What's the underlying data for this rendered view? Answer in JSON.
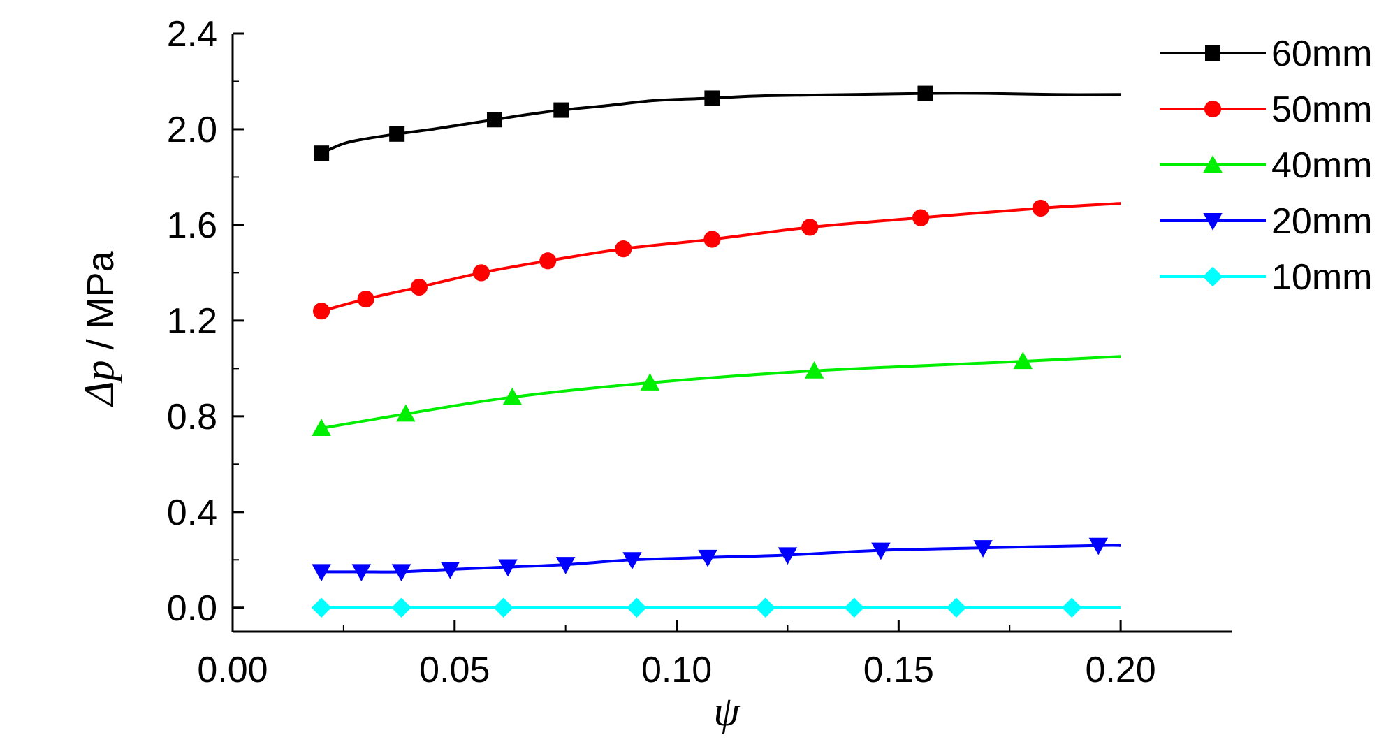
{
  "chart_data": {
    "type": "line",
    "xlabel": "ψ",
    "ylabel_symbol": "Δp",
    "ylabel_unit": " / MPa",
    "xlim": [
      0.0,
      0.225
    ],
    "ylim": [
      -0.1,
      2.4
    ],
    "xticks": [
      0.0,
      0.05,
      0.1,
      0.15,
      0.2
    ],
    "xtick_labels": [
      "0.00",
      "0.05",
      "0.10",
      "0.15",
      "0.20"
    ],
    "yticks": [
      0.0,
      0.4,
      0.8,
      1.2,
      1.6,
      2.0,
      2.4
    ],
    "ytick_labels": [
      "0.0",
      "0.4",
      "0.8",
      "1.2",
      "1.6",
      "2.0",
      "2.4"
    ],
    "grid": false,
    "legend_position": "top-right",
    "series": [
      {
        "name": "60mm",
        "color": "#000000",
        "marker": "square",
        "curve_x": [
          0.02,
          0.025,
          0.03,
          0.037,
          0.045,
          0.052,
          0.059,
          0.066,
          0.074,
          0.085,
          0.095,
          0.108,
          0.12,
          0.14,
          0.156,
          0.17,
          0.185,
          0.2
        ],
        "curve_y": [
          1.9,
          1.94,
          1.96,
          1.98,
          2.0,
          2.02,
          2.04,
          2.06,
          2.08,
          2.1,
          2.12,
          2.13,
          2.14,
          2.145,
          2.15,
          2.15,
          2.145,
          2.145
        ],
        "marker_x": [
          0.02,
          0.037,
          0.059,
          0.074,
          0.108,
          0.156
        ],
        "marker_y": [
          1.9,
          1.98,
          2.04,
          2.08,
          2.13,
          2.15
        ]
      },
      {
        "name": "50mm",
        "color": "#ff0000",
        "marker": "circle",
        "curve_x": [
          0.02,
          0.03,
          0.042,
          0.056,
          0.071,
          0.088,
          0.108,
          0.13,
          0.155,
          0.182,
          0.2
        ],
        "curve_y": [
          1.24,
          1.29,
          1.34,
          1.4,
          1.45,
          1.5,
          1.54,
          1.59,
          1.63,
          1.67,
          1.69
        ],
        "marker_x": [
          0.02,
          0.03,
          0.042,
          0.056,
          0.071,
          0.088,
          0.108,
          0.13,
          0.155,
          0.182
        ],
        "marker_y": [
          1.24,
          1.29,
          1.34,
          1.4,
          1.45,
          1.5,
          1.54,
          1.59,
          1.63,
          1.67
        ]
      },
      {
        "name": "40mm",
        "color": "#00ee00",
        "marker": "triangle-up",
        "curve_x": [
          0.02,
          0.039,
          0.063,
          0.094,
          0.131,
          0.178,
          0.2
        ],
        "curve_y": [
          0.75,
          0.81,
          0.88,
          0.94,
          0.99,
          1.03,
          1.05
        ],
        "marker_x": [
          0.02,
          0.039,
          0.063,
          0.094,
          0.131,
          0.178
        ],
        "marker_y": [
          0.75,
          0.81,
          0.88,
          0.94,
          0.99,
          1.03
        ]
      },
      {
        "name": "20mm",
        "color": "#0000ff",
        "marker": "triangle-down",
        "curve_x": [
          0.02,
          0.029,
          0.038,
          0.049,
          0.062,
          0.075,
          0.09,
          0.107,
          0.125,
          0.146,
          0.169,
          0.195,
          0.2
        ],
        "curve_y": [
          0.15,
          0.15,
          0.15,
          0.16,
          0.17,
          0.18,
          0.2,
          0.21,
          0.22,
          0.24,
          0.25,
          0.26,
          0.26
        ],
        "marker_x": [
          0.02,
          0.029,
          0.038,
          0.049,
          0.062,
          0.075,
          0.09,
          0.107,
          0.125,
          0.146,
          0.169,
          0.195
        ],
        "marker_y": [
          0.15,
          0.15,
          0.15,
          0.16,
          0.17,
          0.18,
          0.2,
          0.21,
          0.22,
          0.24,
          0.25,
          0.26
        ]
      },
      {
        "name": "10mm",
        "color": "#00ffff",
        "marker": "diamond",
        "curve_x": [
          0.02,
          0.2
        ],
        "curve_y": [
          0.0,
          0.0
        ],
        "marker_x": [
          0.02,
          0.038,
          0.061,
          0.091,
          0.12,
          0.14,
          0.163,
          0.189
        ],
        "marker_y": [
          0.0,
          0.0,
          0.0,
          0.0,
          0.0,
          0.0,
          0.0,
          0.0
        ]
      }
    ]
  }
}
